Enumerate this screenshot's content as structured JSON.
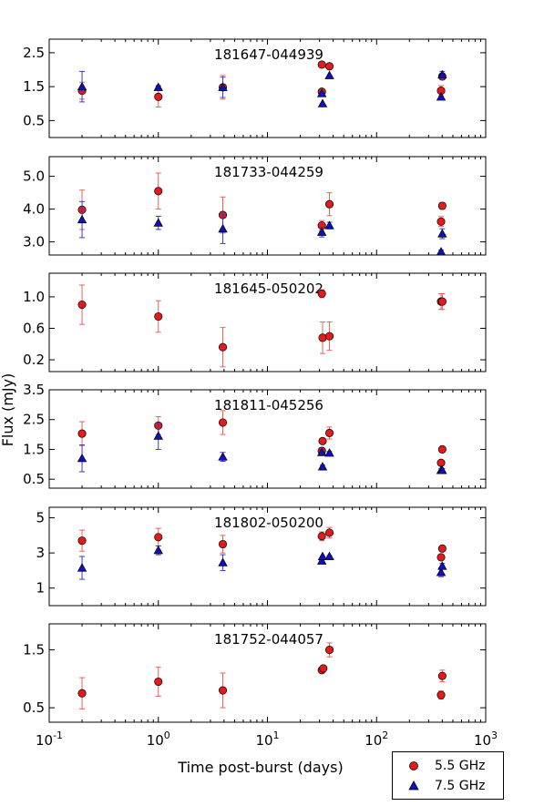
{
  "chart_data": {
    "type": "scatter",
    "x_scale": "log",
    "xlim": [
      0.1,
      1000
    ],
    "xlabel": "Time post-burst (days)",
    "ylabel": "Flux (mJy)",
    "x_tick_labels": [
      {
        "base": "10",
        "exp": "-1"
      },
      {
        "base": "10",
        "exp": "0"
      },
      {
        "base": "10",
        "exp": "1"
      },
      {
        "base": "10",
        "exp": "2"
      },
      {
        "base": "10",
        "exp": "3"
      }
    ],
    "legend": {
      "placement": "bottom-right",
      "entries": [
        {
          "label": "5.5 GHz",
          "marker": "circle",
          "color": "#e41a1c"
        },
        {
          "label": "7.5 GHz",
          "marker": "triangle",
          "color": "#1010c0"
        }
      ]
    },
    "colors": {
      "s55": "#e41a1c",
      "s75": "#1010c0",
      "err55": "#e8615a",
      "err75": "#3a3ac8"
    },
    "panels": [
      {
        "title": "181647-044939",
        "ylim": [
          0.0,
          2.9
        ],
        "yticks": [
          0.5,
          1.5,
          2.5
        ],
        "yticklabels": [
          "0.5",
          "1.5",
          "2.5"
        ],
        "series": [
          {
            "key": "s55",
            "points": [
              {
                "x": 0.2,
                "y": 1.38,
                "err": 0.25
              },
              {
                "x": 1.0,
                "y": 1.2,
                "err": 0.3
              },
              {
                "x": 3.9,
                "y": 1.48,
                "err": 0.35
              },
              {
                "x": 31.5,
                "y": 2.15,
                "err": 0.0
              },
              {
                "x": 31.5,
                "y": 1.35,
                "err": 0.0
              },
              {
                "x": 37.0,
                "y": 2.1,
                "err": 0.05
              },
              {
                "x": 390,
                "y": 1.38,
                "err": 0.15
              },
              {
                "x": 400,
                "y": 1.8,
                "err": 0.1
              }
            ]
          },
          {
            "key": "s75",
            "points": [
              {
                "x": 0.2,
                "y": 1.5,
                "err": 0.45
              },
              {
                "x": 1.0,
                "y": 1.48,
                "err": 0.05
              },
              {
                "x": 3.9,
                "y": 1.48,
                "err": 0.3
              },
              {
                "x": 31.5,
                "y": 1.3,
                "err": 0.05
              },
              {
                "x": 32.0,
                "y": 1.0,
                "err": 0.0
              },
              {
                "x": 37.0,
                "y": 1.83,
                "err": 0.0
              },
              {
                "x": 390,
                "y": 1.2,
                "err": 0.0
              },
              {
                "x": 400,
                "y": 1.85,
                "err": 0.1
              }
            ]
          }
        ]
      },
      {
        "title": "181733-044259",
        "ylim": [
          2.6,
          5.6
        ],
        "yticks": [
          3.0,
          4.0,
          5.0
        ],
        "yticklabels": [
          "3.0",
          "4.0",
          "5.0"
        ],
        "series": [
          {
            "key": "s55",
            "points": [
              {
                "x": 0.2,
                "y": 3.98,
                "err": 0.6
              },
              {
                "x": 1.0,
                "y": 4.55,
                "err": 0.55
              },
              {
                "x": 3.9,
                "y": 3.82,
                "err": 0.55
              },
              {
                "x": 31.5,
                "y": 3.5,
                "err": 0.15
              },
              {
                "x": 37.0,
                "y": 4.15,
                "err": 0.35
              },
              {
                "x": 390,
                "y": 3.62,
                "err": 0.15
              },
              {
                "x": 400,
                "y": 4.1,
                "err": 0.1
              }
            ]
          },
          {
            "key": "s75",
            "points": [
              {
                "x": 0.2,
                "y": 3.68,
                "err": 0.55
              },
              {
                "x": 1.0,
                "y": 3.58,
                "err": 0.2
              },
              {
                "x": 3.9,
                "y": 3.4,
                "err": 0.45
              },
              {
                "x": 31.5,
                "y": 3.3,
                "err": 0.15
              },
              {
                "x": 37.0,
                "y": 3.5,
                "err": 0.1
              },
              {
                "x": 390,
                "y": 2.7,
                "err": 0.05
              },
              {
                "x": 400,
                "y": 3.25,
                "err": 0.15
              }
            ]
          }
        ]
      },
      {
        "title": "181645-050202",
        "ylim": [
          0.05,
          1.3
        ],
        "yticks": [
          0.2,
          0.6,
          1.0
        ],
        "yticklabels": [
          "0.2",
          "0.6",
          "1.0"
        ],
        "series": [
          {
            "key": "s55",
            "points": [
              {
                "x": 0.2,
                "y": 0.9,
                "err": 0.25
              },
              {
                "x": 1.0,
                "y": 0.75,
                "err": 0.2
              },
              {
                "x": 3.9,
                "y": 0.36,
                "err": 0.25
              },
              {
                "x": 31.5,
                "y": 1.04,
                "err": 0.05
              },
              {
                "x": 32.0,
                "y": 0.48,
                "err": 0.2
              },
              {
                "x": 37.0,
                "y": 0.5,
                "err": 0.18
              },
              {
                "x": 390,
                "y": 0.94,
                "err": 0.1
              },
              {
                "x": 400,
                "y": 0.94,
                "err": 0.1
              }
            ]
          }
        ]
      },
      {
        "title": "181811-045256",
        "ylim": [
          0.2,
          3.5
        ],
        "yticks": [
          0.5,
          1.5,
          2.5,
          3.5
        ],
        "yticklabels": [
          "0.5",
          "1.5",
          "2.5",
          "3.5"
        ],
        "series": [
          {
            "key": "s55",
            "points": [
              {
                "x": 0.2,
                "y": 2.03,
                "err": 0.4
              },
              {
                "x": 1.0,
                "y": 2.3,
                "err": 0.3
              },
              {
                "x": 3.9,
                "y": 2.4,
                "err": 0.4
              },
              {
                "x": 31.5,
                "y": 1.45,
                "err": 0.1
              },
              {
                "x": 32.0,
                "y": 1.78,
                "err": 0.05
              },
              {
                "x": 37.0,
                "y": 2.05,
                "err": 0.2
              },
              {
                "x": 390,
                "y": 1.05,
                "err": 0.0
              },
              {
                "x": 400,
                "y": 1.5,
                "err": 0.1
              }
            ]
          },
          {
            "key": "s75",
            "points": [
              {
                "x": 0.2,
                "y": 1.2,
                "err": 0.45
              },
              {
                "x": 1.0,
                "y": 1.95,
                "err": 0.45
              },
              {
                "x": 3.9,
                "y": 1.25,
                "err": 0.15
              },
              {
                "x": 31.5,
                "y": 1.4,
                "err": 0.1
              },
              {
                "x": 32.0,
                "y": 0.92,
                "err": 0.05
              },
              {
                "x": 37.0,
                "y": 1.38,
                "err": 0.05
              },
              {
                "x": 390,
                "y": 0.8,
                "err": 0.05
              },
              {
                "x": 400,
                "y": 0.8,
                "err": 0.05
              }
            ]
          }
        ]
      },
      {
        "title": "181802-050200",
        "ylim": [
          0.0,
          5.6
        ],
        "yticks": [
          1,
          3,
          5
        ],
        "yticklabels": [
          "1",
          "3",
          "5"
        ],
        "series": [
          {
            "key": "s55",
            "points": [
              {
                "x": 0.2,
                "y": 3.7,
                "err": 0.6
              },
              {
                "x": 1.0,
                "y": 3.9,
                "err": 0.5
              },
              {
                "x": 3.9,
                "y": 3.5,
                "err": 0.5
              },
              {
                "x": 31.5,
                "y": 3.95,
                "err": 0.25
              },
              {
                "x": 37.0,
                "y": 4.15,
                "err": 0.3
              },
              {
                "x": 390,
                "y": 2.75,
                "err": 0.1
              },
              {
                "x": 400,
                "y": 3.25,
                "err": 0.1
              }
            ]
          },
          {
            "key": "s75",
            "points": [
              {
                "x": 0.2,
                "y": 2.15,
                "err": 0.65
              },
              {
                "x": 1.0,
                "y": 3.15,
                "err": 0.25
              },
              {
                "x": 3.9,
                "y": 2.45,
                "err": 0.45
              },
              {
                "x": 31.5,
                "y": 2.55,
                "err": 0.05
              },
              {
                "x": 32.0,
                "y": 2.8,
                "err": 0.0
              },
              {
                "x": 37.0,
                "y": 2.8,
                "err": 0.05
              },
              {
                "x": 390,
                "y": 1.9,
                "err": 0.25
              },
              {
                "x": 400,
                "y": 2.25,
                "err": 0.15
              }
            ]
          }
        ]
      },
      {
        "title": "181752-044057",
        "ylim": [
          0.25,
          1.95
        ],
        "yticks": [
          0.5,
          1.5
        ],
        "yticklabels": [
          "0.5",
          "1.5"
        ],
        "series": [
          {
            "key": "s55",
            "points": [
              {
                "x": 0.2,
                "y": 0.75,
                "err": 0.27
              },
              {
                "x": 1.0,
                "y": 0.95,
                "err": 0.25
              },
              {
                "x": 3.9,
                "y": 0.8,
                "err": 0.3
              },
              {
                "x": 31.5,
                "y": 1.15,
                "err": 0.03
              },
              {
                "x": 32.5,
                "y": 1.18,
                "err": 0.03
              },
              {
                "x": 37.0,
                "y": 1.5,
                "err": 0.12
              },
              {
                "x": 390,
                "y": 0.72,
                "err": 0.07
              },
              {
                "x": 400,
                "y": 1.05,
                "err": 0.1
              }
            ]
          }
        ]
      }
    ]
  }
}
